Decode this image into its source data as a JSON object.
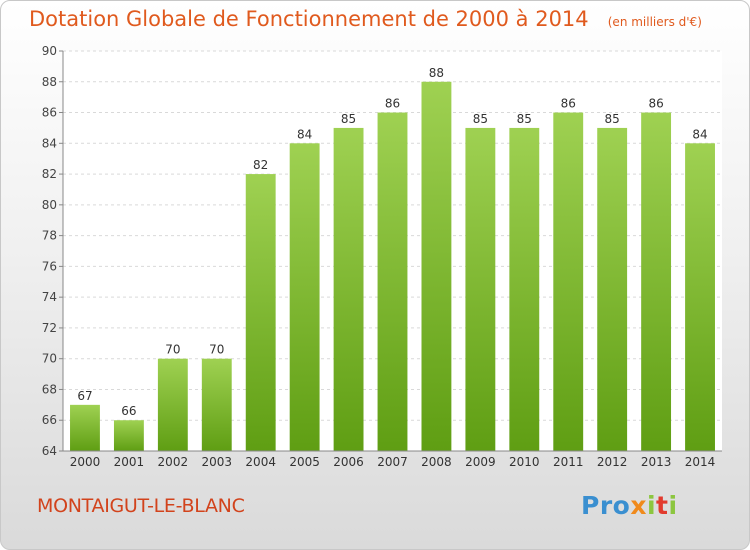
{
  "title": "Dotation Globale de Fonctionnement de 2000 à 2014",
  "unit_note": "(en milliers d'€)",
  "town": "MONTAIGUT-LE-BLANC",
  "logo": {
    "p1": "Pro",
    "p2": "x",
    "p3": "i",
    "p4": "t",
    "p5": "i"
  },
  "colors": {
    "title": "#e05a1e",
    "town": "#d2431c",
    "bar_top": "#9fd152",
    "bar_bottom": "#5f9e13"
  },
  "chart_data": {
    "type": "bar",
    "categories": [
      "2000",
      "2001",
      "2002",
      "2003",
      "2004",
      "2005",
      "2006",
      "2007",
      "2008",
      "2009",
      "2010",
      "2011",
      "2012",
      "2013",
      "2014"
    ],
    "values": [
      67,
      66,
      70,
      70,
      82,
      84,
      85,
      86,
      88,
      85,
      85,
      86,
      85,
      86,
      84
    ],
    "ylim": [
      64,
      90
    ],
    "yticks": [
      64,
      66,
      68,
      70,
      72,
      74,
      76,
      78,
      80,
      82,
      84,
      86,
      88,
      90
    ],
    "grid": true,
    "data_labels": true
  }
}
